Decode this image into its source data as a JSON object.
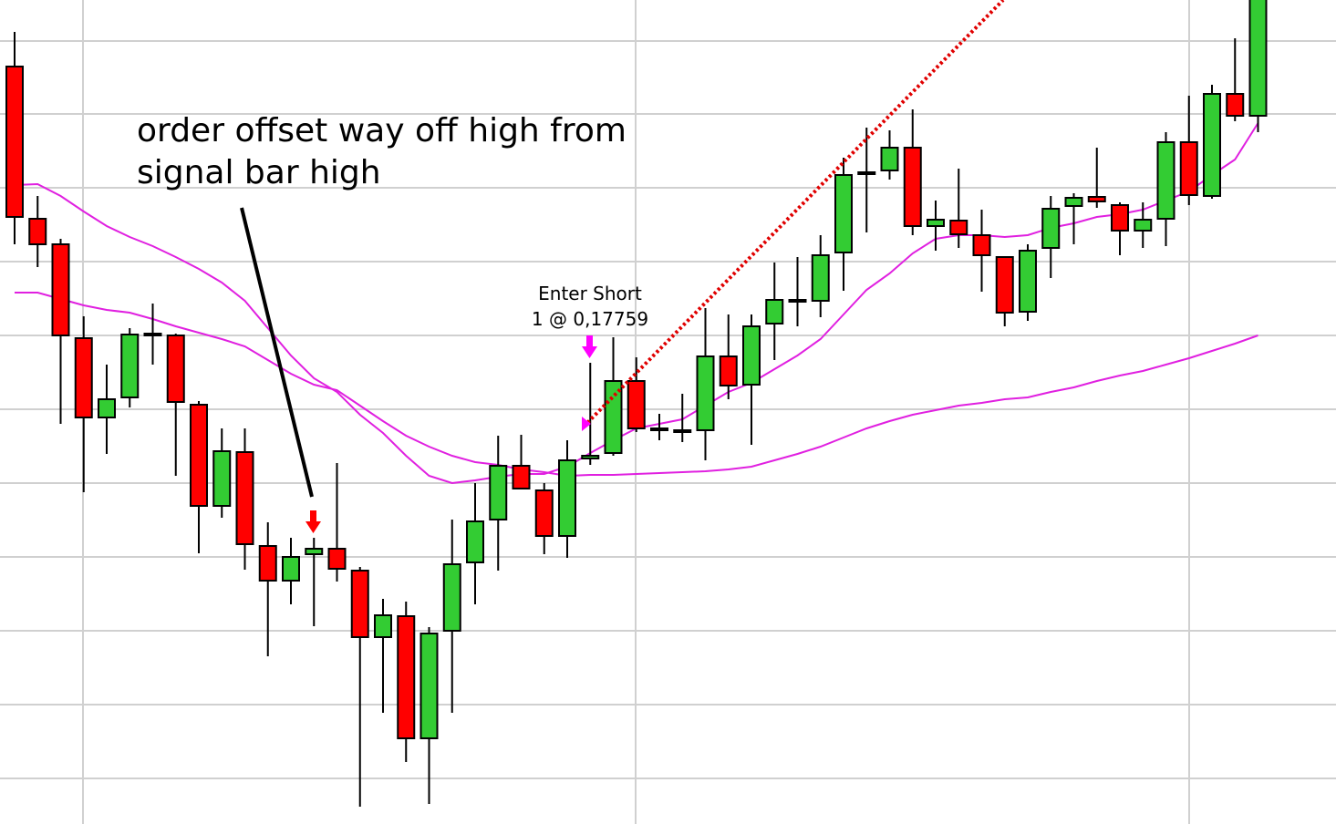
{
  "chart_data": {
    "type": "candlestick",
    "categories": [
      null,
      null,
      null,
      null,
      null,
      null,
      null,
      null,
      null,
      null,
      null,
      null,
      null,
      null,
      null,
      null,
      null,
      null,
      null,
      null,
      null,
      null,
      null,
      null,
      null,
      null,
      null,
      null,
      null,
      null,
      null,
      null,
      null,
      null,
      null,
      null,
      null,
      null,
      null,
      null,
      null,
      null,
      null,
      null,
      null,
      null,
      null,
      null,
      null,
      null,
      null,
      null,
      null,
      null,
      null
    ],
    "open": [
      831,
      664,
      636,
      533,
      446,
      468,
      538,
      536,
      460,
      349,
      408,
      305,
      267,
      296,
      302,
      278,
      205,
      228,
      94,
      212,
      287,
      334,
      393,
      366,
      316,
      401,
      407,
      486,
      434,
      432,
      432,
      513,
      482,
      549,
      575,
      574,
      627,
      715,
      717,
      742,
      656,
      662,
      646,
      622,
      562,
      632,
      678,
      688,
      679,
      651,
      664,
      748,
      689,
      801,
      777
    ],
    "high": [
      869,
      689,
      642,
      557,
      504,
      544,
      571,
      538,
      464,
      434,
      434,
      331,
      314,
      314,
      396,
      282,
      247,
      244,
      216,
      334,
      374,
      426,
      427,
      374,
      421,
      506,
      534,
      512,
      450,
      472,
      566,
      559,
      559,
      616,
      622,
      646,
      731,
      764,
      761,
      784,
      684,
      719,
      674,
      622,
      636,
      689,
      692,
      742,
      682,
      682,
      759,
      799,
      811,
      862,
      930
    ],
    "low": [
      636,
      611,
      439,
      364,
      406,
      457,
      504,
      382,
      297,
      336,
      279,
      184,
      241,
      217,
      266,
      19,
      122,
      68,
      22,
      122,
      241,
      278,
      367,
      296,
      292,
      394,
      404,
      430,
      421,
      419,
      399,
      466,
      416,
      509,
      546,
      556,
      585,
      649,
      707,
      646,
      629,
      632,
      584,
      546,
      552,
      599,
      636,
      676,
      624,
      632,
      634,
      679,
      686,
      771,
      759
    ],
    "close": [
      666,
      636,
      536,
      446,
      466,
      537,
      538,
      463,
      349,
      409,
      307,
      267,
      293,
      302,
      280,
      205,
      229,
      94,
      209,
      285,
      332,
      393,
      368,
      316,
      399,
      404,
      486,
      434,
      434,
      432,
      513,
      481,
      546,
      575,
      575,
      624,
      712,
      715,
      742,
      656,
      663,
      647,
      624,
      561,
      629,
      675,
      687,
      683,
      651,
      663,
      748,
      690,
      801,
      777,
      910
    ],
    "up_color": "#33cc33",
    "down_color": "#ff0000",
    "ylim": [
      0,
      904
    ],
    "series": [
      {
        "color": "#e020e0",
        "values": [
          701,
          702,
          689,
          672,
          656,
          644,
          634,
          622,
          609,
          594,
          574,
          544,
          514,
          489,
          474,
          449,
          429,
          404,
          382,
          374,
          377,
          381,
          384,
          384,
          392,
          407,
          421,
          434,
          439,
          444,
          459,
          474,
          484,
          499,
          514,
          532,
          559,
          586,
          604,
          626,
          642,
          646,
          646,
          644,
          646,
          654,
          659,
          666,
          669,
          674,
          684,
          694,
          712,
          729,
          769
        ]
      },
      {
        "color": "#e020e0",
        "values": [
          583,
          583,
          576,
          569,
          564,
          561,
          554,
          546,
          539,
          532,
          524,
          509,
          494,
          482,
          476,
          459,
          442,
          426,
          414,
          404,
          397,
          394,
          389,
          386,
          382,
          383,
          383,
          384,
          385,
          386,
          387,
          389,
          392,
          399,
          406,
          414,
          424,
          434,
          442,
          449,
          454,
          459,
          462,
          466,
          468,
          474,
          479,
          486,
          492,
          497,
          504,
          511,
          519,
          527,
          536
        ]
      }
    ],
    "annotations": [
      {
        "lines": [
          "order offset way off high from",
          "signal bar high"
        ]
      },
      {
        "lines": [
          "Enter Short",
          "1 @ 0,17759"
        ]
      }
    ]
  }
}
